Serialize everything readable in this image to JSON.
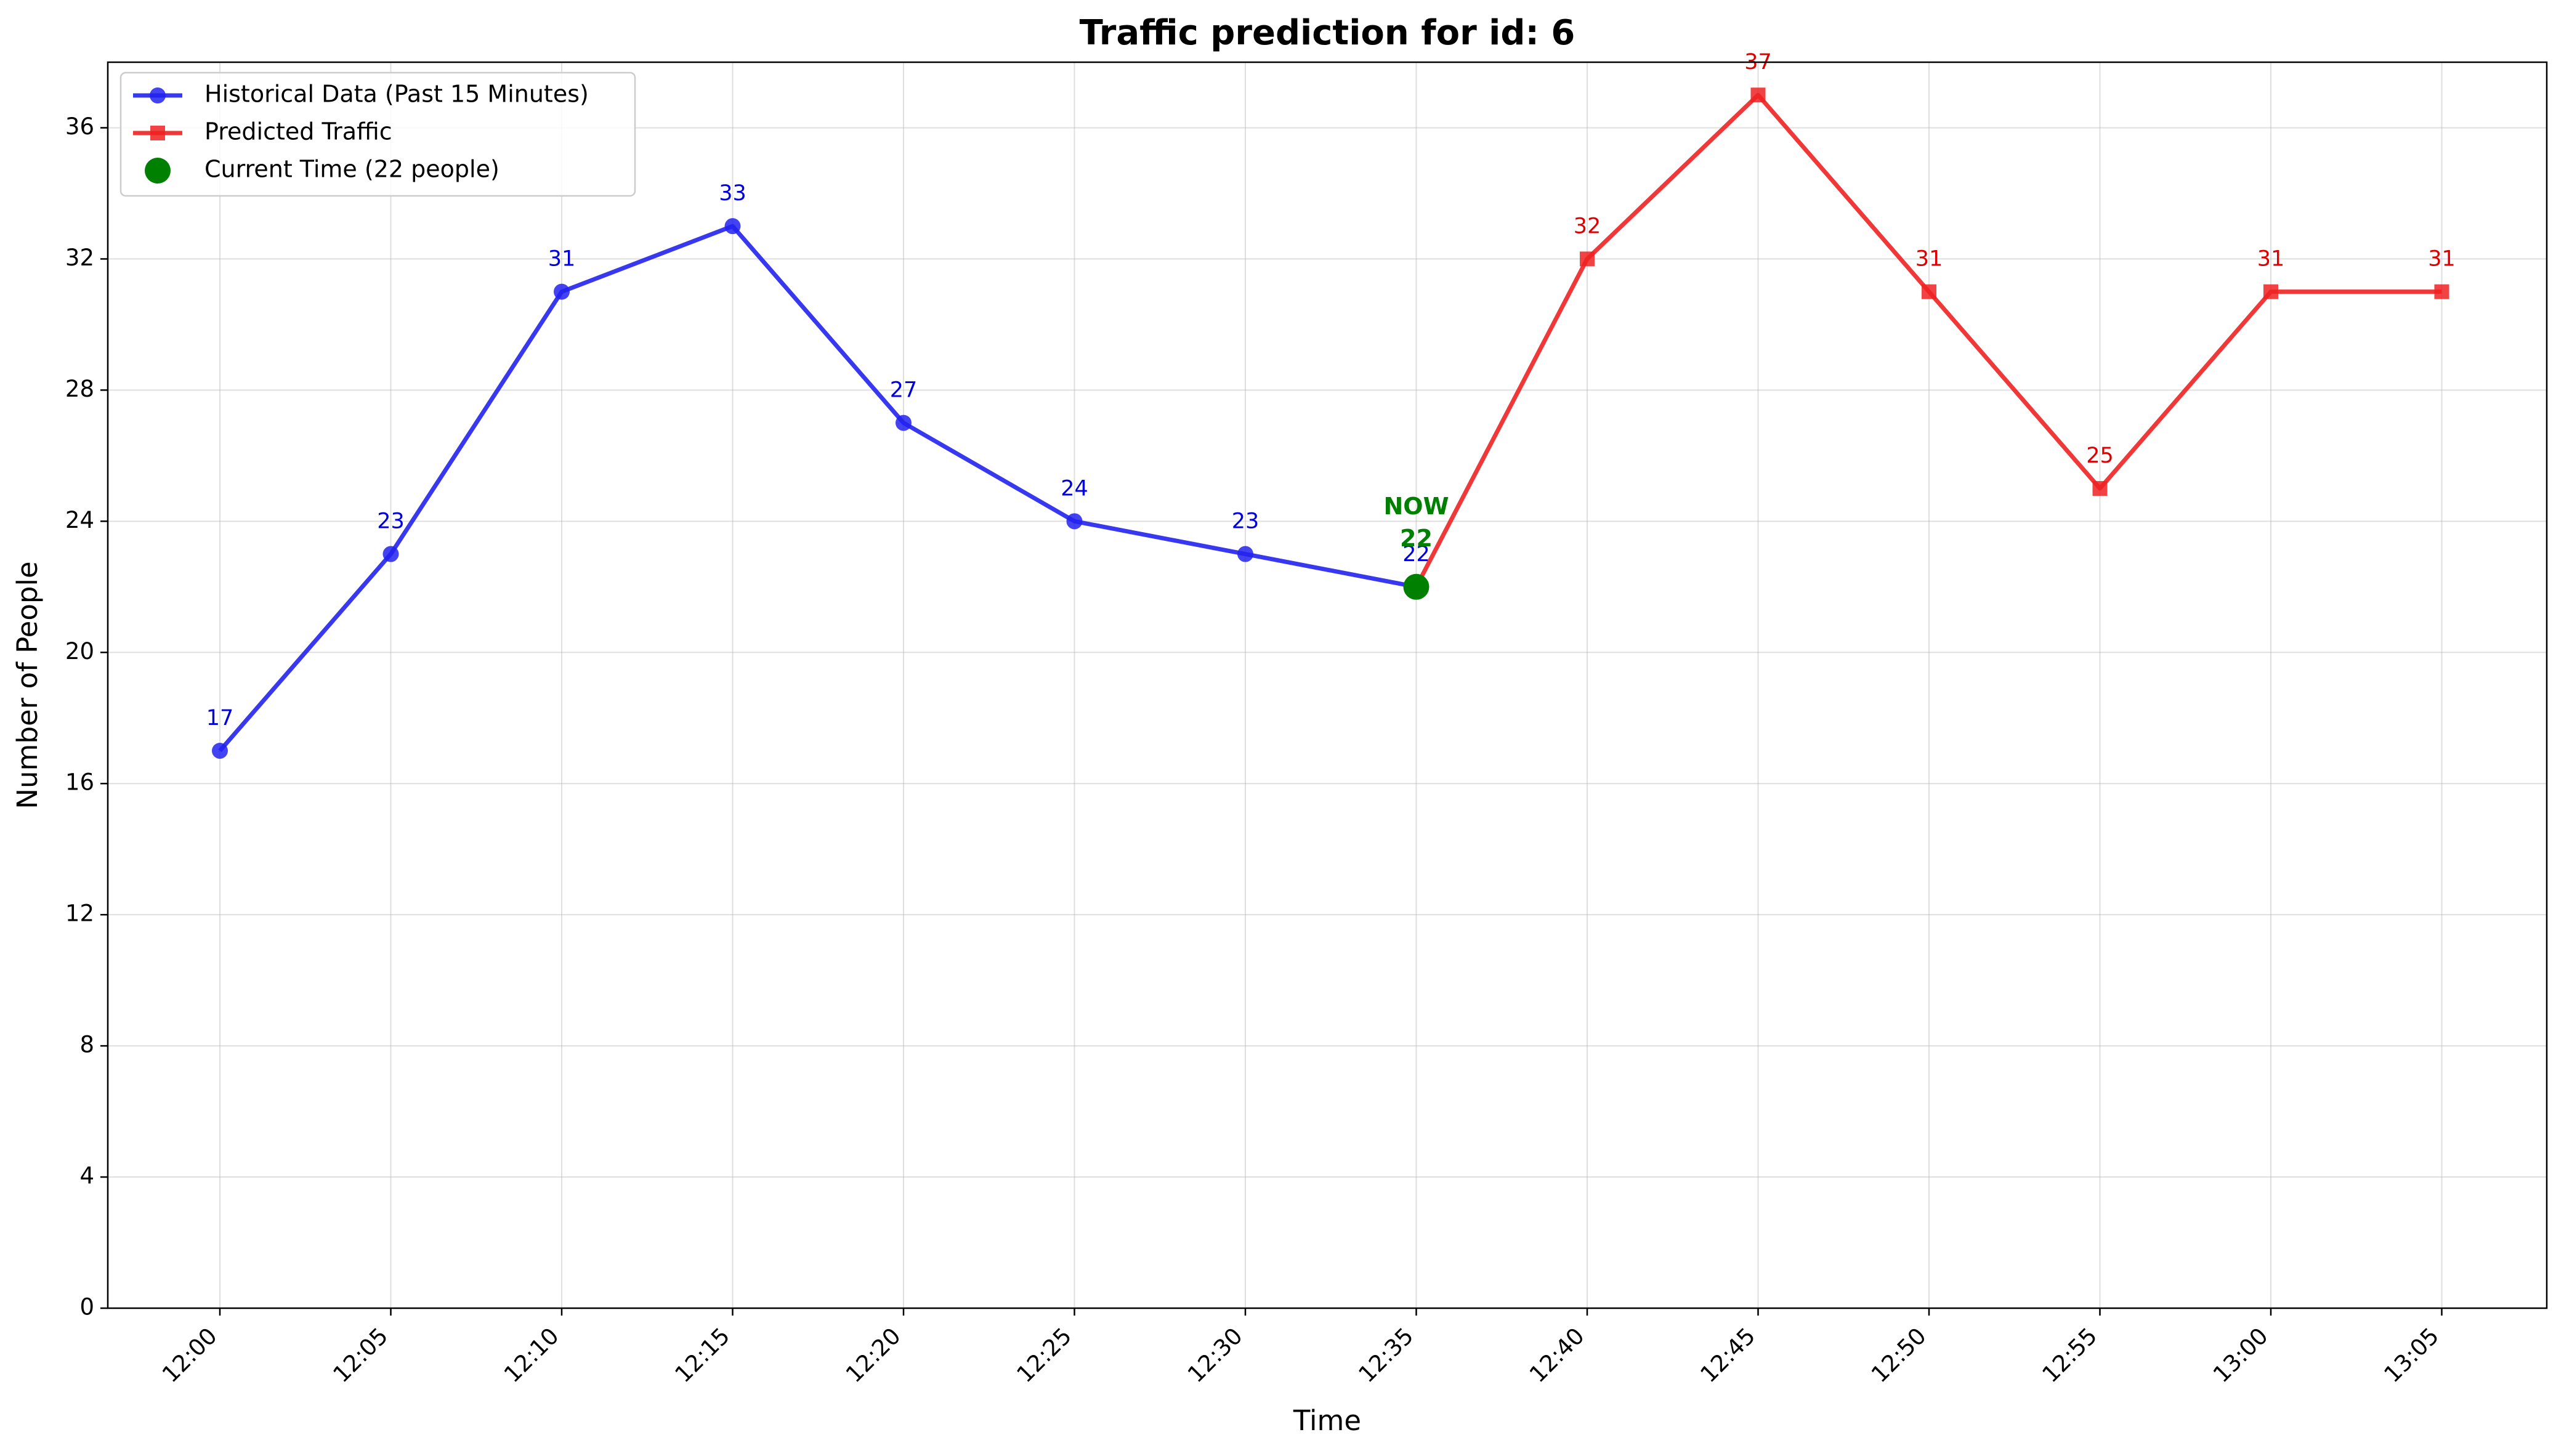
{
  "chart_data": {
    "type": "line",
    "title": "Traffic prediction for id: 6",
    "xlabel": "Time",
    "ylabel": "Number of People",
    "categories": [
      "12:00",
      "12:05",
      "12:10",
      "12:15",
      "12:20",
      "12:25",
      "12:30",
      "12:35",
      "12:40",
      "12:45",
      "12:50",
      "12:55",
      "13:00",
      "13:05"
    ],
    "yticks": [
      0,
      4,
      8,
      12,
      16,
      20,
      24,
      28,
      32,
      36
    ],
    "ylim": [
      0,
      38
    ],
    "grid": true,
    "legend_position": "top-left",
    "series": [
      {
        "name": "Historical Data (Past 15 Minutes)",
        "color": "#2222ee",
        "marker": "circle",
        "label_color": "#0000dd",
        "x": [
          "12:00",
          "12:05",
          "12:10",
          "12:15",
          "12:20",
          "12:25",
          "12:30",
          "12:35"
        ],
        "values": [
          17,
          23,
          31,
          33,
          27,
          24,
          23,
          22
        ],
        "labels": [
          "17",
          "23",
          "31",
          "33",
          "27",
          "24",
          "23",
          "22"
        ]
      },
      {
        "name": "Predicted Traffic",
        "color": "#ee2222",
        "marker": "square",
        "label_color": "#dd0000",
        "x": [
          "12:35",
          "12:40",
          "12:45",
          "12:50",
          "12:55",
          "13:00",
          "13:05"
        ],
        "values": [
          22,
          32,
          37,
          31,
          25,
          31,
          31
        ],
        "labels": [
          "32",
          "37",
          "31",
          "25",
          "31",
          "31"
        ]
      }
    ],
    "current_point": {
      "name": "Current Time (22 people)",
      "color": "#008000",
      "x": "12:35",
      "value": 22,
      "annotation_line1": "NOW",
      "annotation_line2": "22"
    }
  }
}
